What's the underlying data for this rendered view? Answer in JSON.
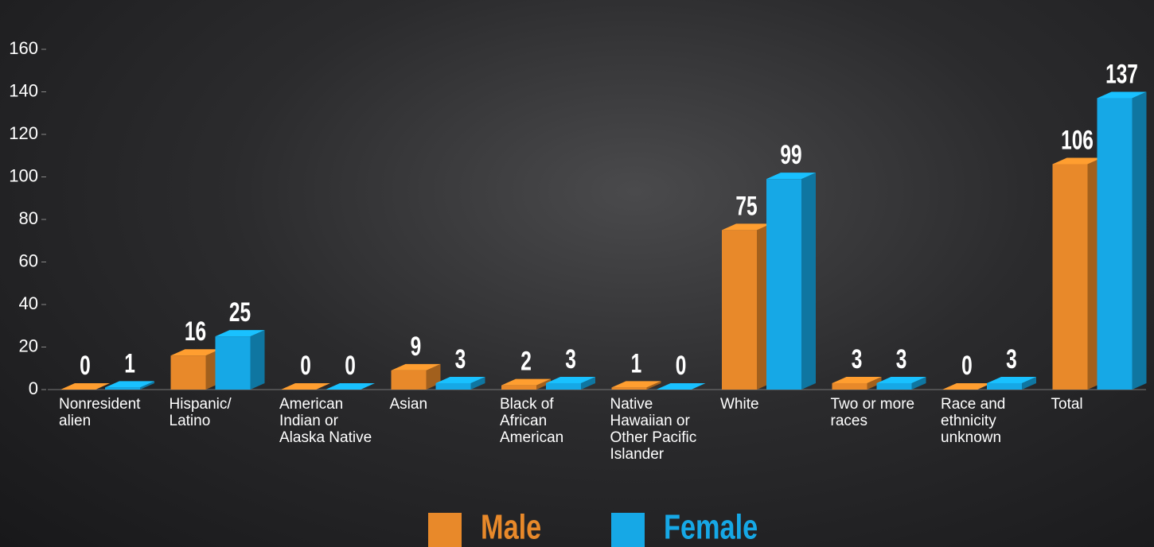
{
  "chart_data": {
    "type": "bar3d",
    "categories": [
      "Nonresident alien",
      "Hispanic/ Latino",
      "American Indian or Alaska Native",
      "Asian",
      "Black of African American",
      "Native Hawaiian or Other Pacific Islander",
      "White",
      "Two or more races",
      "Race and ethnicity unknown",
      "Total"
    ],
    "series": [
      {
        "name": "Male",
        "color": "#e8892a",
        "values": [
          0,
          16,
          0,
          9,
          2,
          1,
          75,
          3,
          0,
          106
        ]
      },
      {
        "name": "Female",
        "color": "#16a8e6",
        "values": [
          1,
          25,
          0,
          3,
          3,
          0,
          99,
          3,
          3,
          137
        ]
      }
    ],
    "ylim": [
      0,
      160
    ],
    "yticks": [
      0,
      20,
      40,
      60,
      80,
      100,
      120,
      140,
      160
    ]
  }
}
